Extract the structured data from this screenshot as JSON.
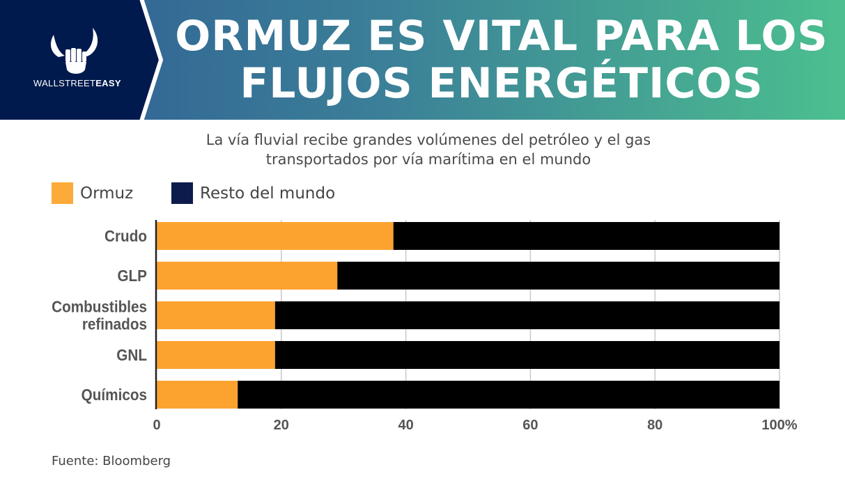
{
  "header": {
    "title_line1": "ORMUZ ES VITAL PARA LOS",
    "title_line2": "FLUJOS ENERGÉTICOS",
    "brand_light": "WALLSTREET",
    "brand_bold": "EASY"
  },
  "colors": {
    "ormuz": "#fca32f",
    "resto": "#000000",
    "legend_resto": "#0d1b4c",
    "navy": "#001a4d"
  },
  "chart_data": {
    "type": "bar",
    "orientation": "horizontal-stacked",
    "title": "La vía fluvial recibe grandes volúmenes del petróleo y el gas transportados por vía marítima en el mundo",
    "subtitle_line1": "La vía fluvial recibe grandes volúmenes del petróleo y el gas",
    "subtitle_line2": "transportados por vía marítima en el mundo",
    "categories": [
      [
        "Crudo"
      ],
      [
        "GLP"
      ],
      [
        "Combustibles",
        "refinados"
      ],
      [
        "GNL"
      ],
      [
        "Químicos"
      ]
    ],
    "series": [
      {
        "name": "Ormuz",
        "values": [
          38,
          29,
          19,
          19,
          13
        ]
      },
      {
        "name": "Resto del mundo",
        "values": [
          62,
          71,
          81,
          81,
          87
        ]
      }
    ],
    "xlim": [
      0,
      100
    ],
    "xticks": [
      "0",
      "20",
      "40",
      "60",
      "80",
      "100%"
    ],
    "grid": true,
    "legend": "top-left"
  },
  "source": "Fuente: Bloomberg"
}
